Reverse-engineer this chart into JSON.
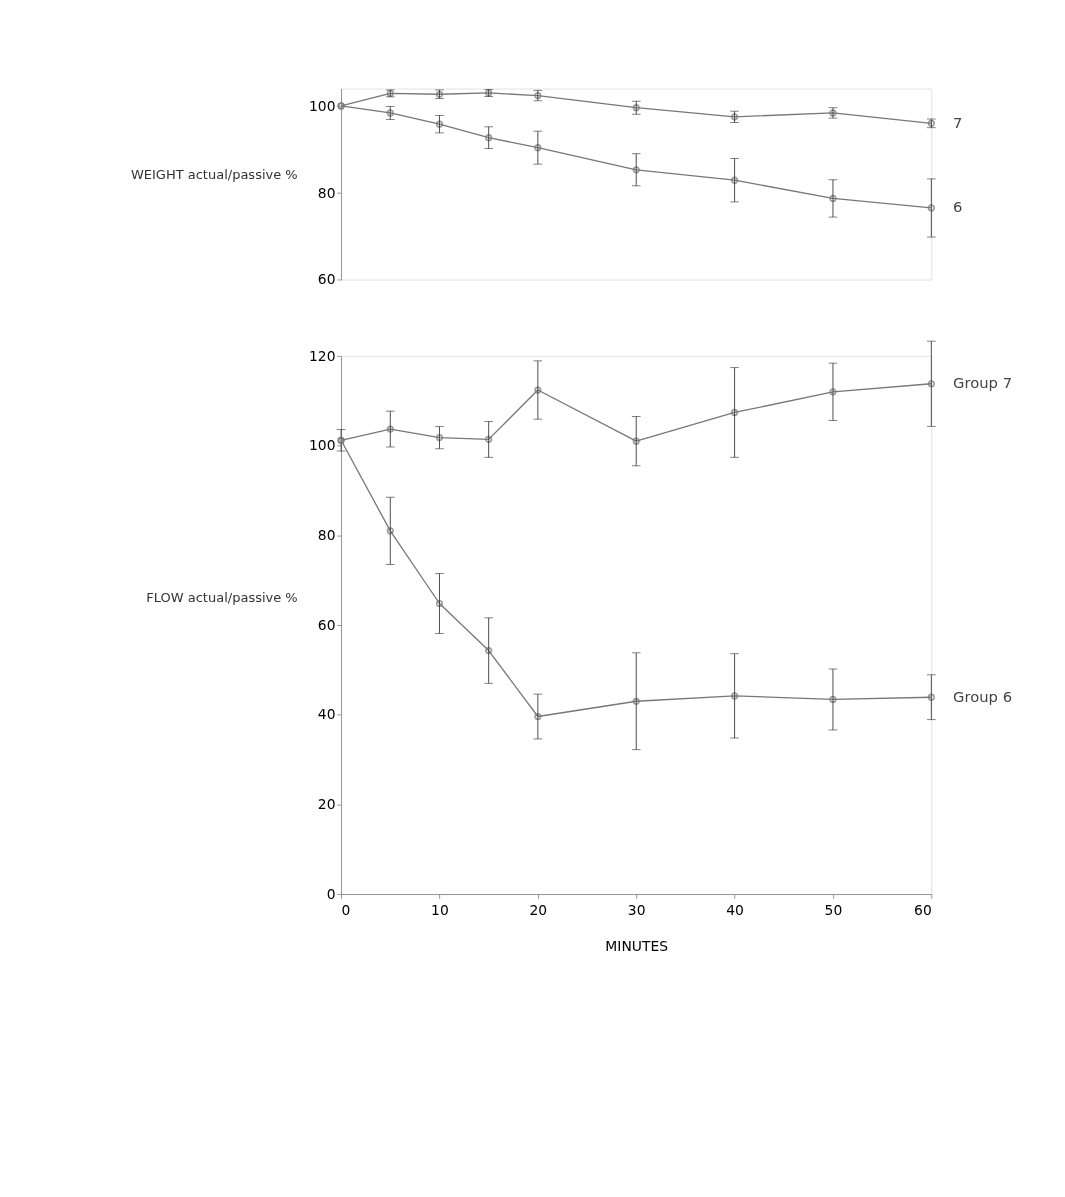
{
  "chart_data": [
    {
      "type": "line",
      "ylabel": "WEIGHT actual/passive %",
      "x": [
        0,
        5,
        10,
        15,
        20,
        30,
        40,
        50,
        60
      ],
      "xlim": [
        0,
        60
      ],
      "xticks": [
        0,
        10,
        20,
        30,
        40,
        50,
        60
      ],
      "ylim": [
        60,
        104
      ],
      "yticks": [
        60,
        80,
        100
      ],
      "tick_labels": "y",
      "grid": false,
      "marker": "circle",
      "line_style": "solid",
      "series": [
        {
          "name": "7",
          "color": "#777777",
          "values": [
            100,
            102.9,
            102.7,
            103,
            102.4,
            99.6,
            97.5,
            98.4,
            96
          ],
          "errors": [
            null,
            0.8,
            1,
            0.8,
            1.2,
            1.5,
            1.3,
            1.2,
            1
          ]
        },
        {
          "name": "6",
          "color": "#777777",
          "values": [
            100,
            98.4,
            95.8,
            92.7,
            90.4,
            85.3,
            82.9,
            78.7,
            76.5
          ],
          "errors": [
            null,
            1.5,
            2,
            2.5,
            3.8,
            3.7,
            5,
            4.3,
            6.7
          ]
        }
      ]
    },
    {
      "type": "line",
      "ylabel": "FLOW actual/passive %",
      "xlabel": "MINUTES",
      "x": [
        0,
        5,
        10,
        15,
        20,
        30,
        40,
        50,
        60
      ],
      "xlim": [
        0,
        60
      ],
      "xticks": [
        0,
        10,
        20,
        30,
        40,
        50,
        60
      ],
      "ylim": [
        0,
        120
      ],
      "yticks": [
        0,
        20,
        40,
        60,
        80,
        100,
        120
      ],
      "grid": false,
      "marker": "circle",
      "line_style": "solid",
      "series": [
        {
          "name": "Group 7",
          "color": "#777777",
          "values": [
            101.2,
            103.7,
            101.8,
            101.4,
            112.4,
            101,
            107.4,
            112,
            113.8
          ],
          "errors": [
            2.4,
            4,
            2.5,
            4,
            6.5,
            5.5,
            10,
            6.4,
            9.5
          ]
        },
        {
          "name": "Group 6",
          "color": "#777777",
          "values": [
            101.2,
            81,
            64.8,
            54.3,
            39.6,
            43,
            44.2,
            43.4,
            43.9
          ],
          "errors": [
            null,
            7.5,
            6.7,
            7.3,
            5,
            10.8,
            9.4,
            6.8,
            5
          ]
        }
      ]
    }
  ]
}
